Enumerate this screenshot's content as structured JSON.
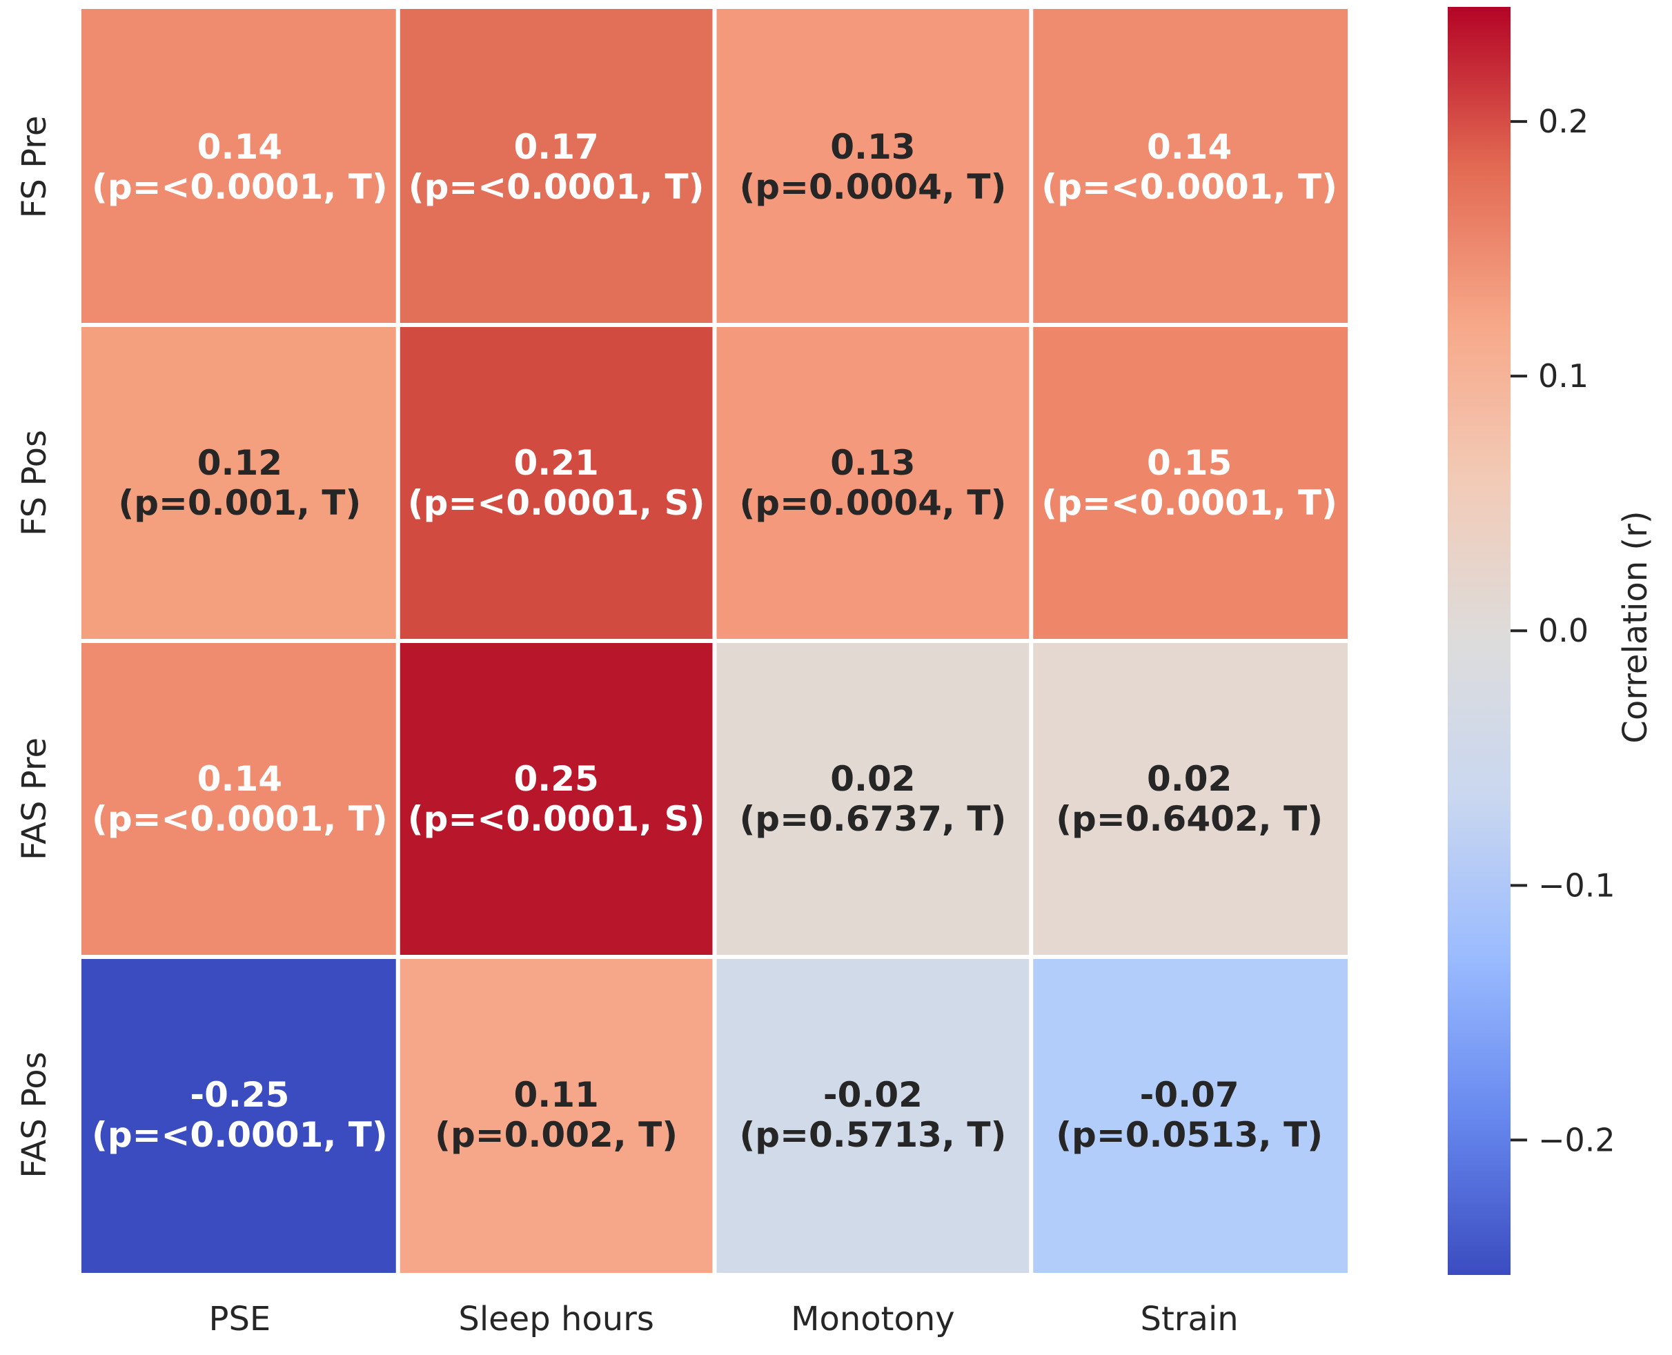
{
  "chart_data": {
    "type": "heatmap",
    "title": "",
    "xlabel": "",
    "ylabel": "",
    "colormap": "coolwarm",
    "x_categories": [
      "PSE",
      "Sleep hours",
      "Monotony",
      "Strain"
    ],
    "y_categories": [
      "FS Pre",
      "FS Pos",
      "FAS Pre",
      "FAS Pos"
    ],
    "values": [
      [
        0.14,
        0.17,
        0.13,
        0.14
      ],
      [
        0.12,
        0.21,
        0.13,
        0.15
      ],
      [
        0.14,
        0.25,
        0.02,
        0.02
      ],
      [
        -0.25,
        0.11,
        -0.02,
        -0.07
      ]
    ],
    "annotations": [
      [
        {
          "r": "0.14",
          "detail": "(p=<0.0001, T)"
        },
        {
          "r": "0.17",
          "detail": "(p=<0.0001, T)"
        },
        {
          "r": "0.13",
          "detail": "(p=0.0004, T)"
        },
        {
          "r": "0.14",
          "detail": "(p=<0.0001, T)"
        }
      ],
      [
        {
          "r": "0.12",
          "detail": "(p=0.001, T)"
        },
        {
          "r": "0.21",
          "detail": "(p=<0.0001, S)"
        },
        {
          "r": "0.13",
          "detail": "(p=0.0004, T)"
        },
        {
          "r": "0.15",
          "detail": "(p=<0.0001, T)"
        }
      ],
      [
        {
          "r": "0.14",
          "detail": "(p=<0.0001, T)"
        },
        {
          "r": "0.25",
          "detail": "(p=<0.0001, S)"
        },
        {
          "r": "0.02",
          "detail": "(p=0.6737, T)"
        },
        {
          "r": "0.02",
          "detail": "(p=0.6402, T)"
        }
      ],
      [
        {
          "r": "-0.25",
          "detail": "(p=<0.0001, T)"
        },
        {
          "r": "0.11",
          "detail": "(p=0.002, T)"
        },
        {
          "r": "-0.02",
          "detail": "(p=0.5713, T)"
        },
        {
          "r": "-0.07",
          "detail": "(p=0.0513, T)"
        }
      ]
    ],
    "cell_colors": [
      [
        "#ef8b6f",
        "#e27058",
        "#f4997b",
        "#ef8b6f"
      ],
      [
        "#f4a07f",
        "#d24b40",
        "#f4997b",
        "#ee8669"
      ],
      [
        "#ef8b6f",
        "#b8162b",
        "#e3d9d3",
        "#e5d8d1"
      ],
      [
        "#3b4cc0",
        "#f6a789",
        "#d1dae8",
        "#b3cdfa"
      ]
    ],
    "text_colors": [
      [
        "#ffffff",
        "#ffffff",
        "#262626",
        "#ffffff"
      ],
      [
        "#262626",
        "#ffffff",
        "#262626",
        "#ffffff"
      ],
      [
        "#ffffff",
        "#ffffff",
        "#262626",
        "#262626"
      ],
      [
        "#ffffff",
        "#262626",
        "#262626",
        "#262626"
      ]
    ],
    "colorbar": {
      "label": "Correlation (r)",
      "vmin": -0.253,
      "vmax": 0.245,
      "ticks": [
        0.2,
        0.1,
        0.0,
        -0.1,
        -0.2
      ],
      "tick_labels": [
        "0.2",
        "0.1",
        "0.0",
        "−0.1",
        "−0.2"
      ],
      "gradient_stops": [
        "#3b4cc0",
        "#6788ee",
        "#9abbff",
        "#c9d7f0",
        "#dddcdc",
        "#f2cbb7",
        "#f7a889",
        "#e26952",
        "#b40426"
      ]
    },
    "grid": false,
    "legend": "colorbar-right"
  }
}
